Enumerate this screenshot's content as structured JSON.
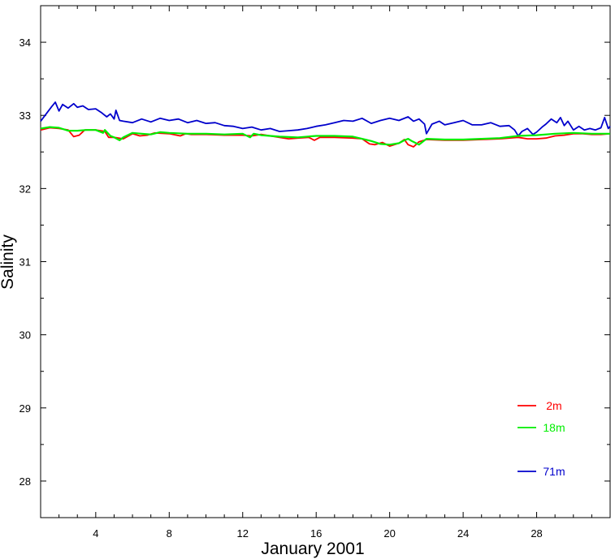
{
  "chart_data": {
    "type": "line",
    "title": "",
    "xlabel": "January 2001",
    "ylabel": "Salinity",
    "xlim": [
      1,
      32
    ],
    "ylim": [
      27.5,
      34.5
    ],
    "x_ticks": [
      4,
      8,
      12,
      16,
      20,
      24,
      28
    ],
    "x_tick_labels": [
      "4",
      "8",
      "12",
      "16",
      "20",
      "24",
      "28"
    ],
    "y_ticks": [
      28,
      29,
      30,
      31,
      32,
      33,
      34
    ],
    "y_tick_labels": [
      "28",
      "29",
      "30",
      "31",
      "32",
      "33",
      "34"
    ],
    "grid": false,
    "legend_position": "bottom-right",
    "colors": {
      "2m": "#ff0000",
      "18m": "#00ee00",
      "71m": "#0000cc"
    },
    "series": [
      {
        "name": "2m",
        "color": "#ff0000",
        "x": [
          1.0,
          1.5,
          2.0,
          2.5,
          2.8,
          3.1,
          3.4,
          4.0,
          4.5,
          4.7,
          5.0,
          5.5,
          6.0,
          6.4,
          6.8,
          7.2,
          8.0,
          8.6,
          8.9,
          9.2,
          10.0,
          11.0,
          12.0,
          12.5,
          13.0,
          14.0,
          14.5,
          15.0,
          15.6,
          15.9,
          16.2,
          17.0,
          18.0,
          18.5,
          18.9,
          19.2,
          19.6,
          20.0,
          20.5,
          20.8,
          21.0,
          21.3,
          21.6,
          22.0,
          23.0,
          24.0,
          25.0,
          26.0,
          27.0,
          27.5,
          28.0,
          28.5,
          29.0,
          29.5,
          30.0,
          30.5,
          31.0,
          31.5,
          32.0
        ],
        "values": [
          32.8,
          32.83,
          32.82,
          32.8,
          32.71,
          32.73,
          32.8,
          32.8,
          32.78,
          32.7,
          32.7,
          32.68,
          32.75,
          32.72,
          32.73,
          32.76,
          32.75,
          32.72,
          32.75,
          32.74,
          32.74,
          32.73,
          32.73,
          32.72,
          32.74,
          32.7,
          32.68,
          32.69,
          32.7,
          32.66,
          32.7,
          32.7,
          32.69,
          32.68,
          32.61,
          32.6,
          32.63,
          32.58,
          32.62,
          32.67,
          32.6,
          32.57,
          32.64,
          32.67,
          32.66,
          32.66,
          32.67,
          32.68,
          32.7,
          32.68,
          32.68,
          32.69,
          32.72,
          32.73,
          32.75,
          32.75,
          32.74,
          32.74,
          32.75
        ]
      },
      {
        "name": "18m",
        "color": "#00ee00",
        "x": [
          1.0,
          1.5,
          2.0,
          2.5,
          3.0,
          3.5,
          4.0,
          4.4,
          4.5,
          4.8,
          5.0,
          5.3,
          5.5,
          6.0,
          6.5,
          7.0,
          7.5,
          8.0,
          9.0,
          10.0,
          11.0,
          12.0,
          12.4,
          12.6,
          13.0,
          14.0,
          15.0,
          16.0,
          17.0,
          18.0,
          18.5,
          19.0,
          19.5,
          20.0,
          20.5,
          20.8,
          21.0,
          21.2,
          21.6,
          22.0,
          23.0,
          24.0,
          25.0,
          26.0,
          27.0,
          28.0,
          29.0,
          30.0,
          31.0,
          32.0
        ],
        "values": [
          32.82,
          32.84,
          32.83,
          32.79,
          32.79,
          32.8,
          32.8,
          32.76,
          32.8,
          32.72,
          32.7,
          32.66,
          32.7,
          32.76,
          32.75,
          32.74,
          32.77,
          32.76,
          32.75,
          32.75,
          32.74,
          32.75,
          32.7,
          32.75,
          32.73,
          32.71,
          32.7,
          32.72,
          32.72,
          32.71,
          32.68,
          32.65,
          32.61,
          32.6,
          32.62,
          32.66,
          32.68,
          32.65,
          32.6,
          32.68,
          32.67,
          32.67,
          32.68,
          32.69,
          32.72,
          32.73,
          32.75,
          32.76,
          32.75,
          32.75
        ]
      },
      {
        "name": "71m",
        "color": "#0000cc",
        "x": [
          1.0,
          1.3,
          1.6,
          1.8,
          2.0,
          2.2,
          2.5,
          2.8,
          3.0,
          3.3,
          3.6,
          4.0,
          4.3,
          4.6,
          4.8,
          5.0,
          5.1,
          5.3,
          5.5,
          6.0,
          6.5,
          7.0,
          7.5,
          8.0,
          8.5,
          9.0,
          9.5,
          10.0,
          10.5,
          11.0,
          11.5,
          12.0,
          12.5,
          13.0,
          13.5,
          14.0,
          14.5,
          15.0,
          15.5,
          16.0,
          16.5,
          17.0,
          17.5,
          18.0,
          18.5,
          19.0,
          19.5,
          20.0,
          20.5,
          21.0,
          21.3,
          21.6,
          21.9,
          22.0,
          22.3,
          22.7,
          23.0,
          23.5,
          24.0,
          24.5,
          25.0,
          25.5,
          26.0,
          26.5,
          26.8,
          27.0,
          27.2,
          27.5,
          27.8,
          28.0,
          28.3,
          28.5,
          28.8,
          29.1,
          29.3,
          29.5,
          29.7,
          30.0,
          30.3,
          30.6,
          30.9,
          31.2,
          31.5,
          31.7,
          31.9,
          32.0
        ],
        "values": [
          32.92,
          33.02,
          33.12,
          33.18,
          33.06,
          33.15,
          33.1,
          33.16,
          33.11,
          33.13,
          33.08,
          33.09,
          33.04,
          32.98,
          33.02,
          32.95,
          33.07,
          32.93,
          32.92,
          32.9,
          32.95,
          32.91,
          32.96,
          32.93,
          32.95,
          32.9,
          32.93,
          32.89,
          32.9,
          32.86,
          32.85,
          32.82,
          32.84,
          32.8,
          32.82,
          32.78,
          32.79,
          32.8,
          32.82,
          32.85,
          32.87,
          32.9,
          32.93,
          32.92,
          32.96,
          32.89,
          32.93,
          32.96,
          32.93,
          32.98,
          32.92,
          32.95,
          32.88,
          32.75,
          32.88,
          32.92,
          32.87,
          32.9,
          32.93,
          32.87,
          32.87,
          32.9,
          32.85,
          32.86,
          32.8,
          32.72,
          32.78,
          32.82,
          32.74,
          32.77,
          32.84,
          32.88,
          32.95,
          32.9,
          32.97,
          32.86,
          32.92,
          32.8,
          32.85,
          32.8,
          32.82,
          32.8,
          32.83,
          32.97,
          32.82,
          32.85
        ]
      }
    ]
  }
}
